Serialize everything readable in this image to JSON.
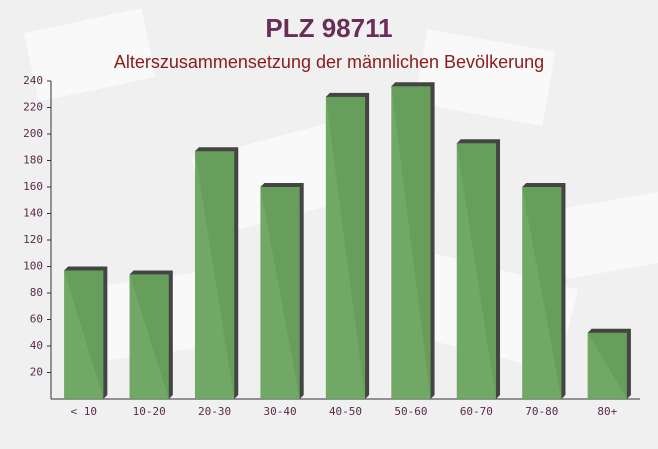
{
  "chart_data": {
    "type": "bar",
    "title": "PLZ 98711",
    "subtitle": "Alterszusammensetzung der männlichen Bevölkerung",
    "categories": [
      "< 10",
      "10-20",
      "20-30",
      "30-40",
      "40-50",
      "50-60",
      "60-70",
      "70-80",
      "80+"
    ],
    "values": [
      97,
      94,
      187,
      160,
      228,
      236,
      193,
      160,
      50
    ],
    "color": "#6aa35e",
    "ylim": [
      0,
      240
    ],
    "yticks": [
      20,
      40,
      60,
      80,
      100,
      120,
      140,
      160,
      180,
      200,
      220,
      240
    ],
    "grid": false
  }
}
